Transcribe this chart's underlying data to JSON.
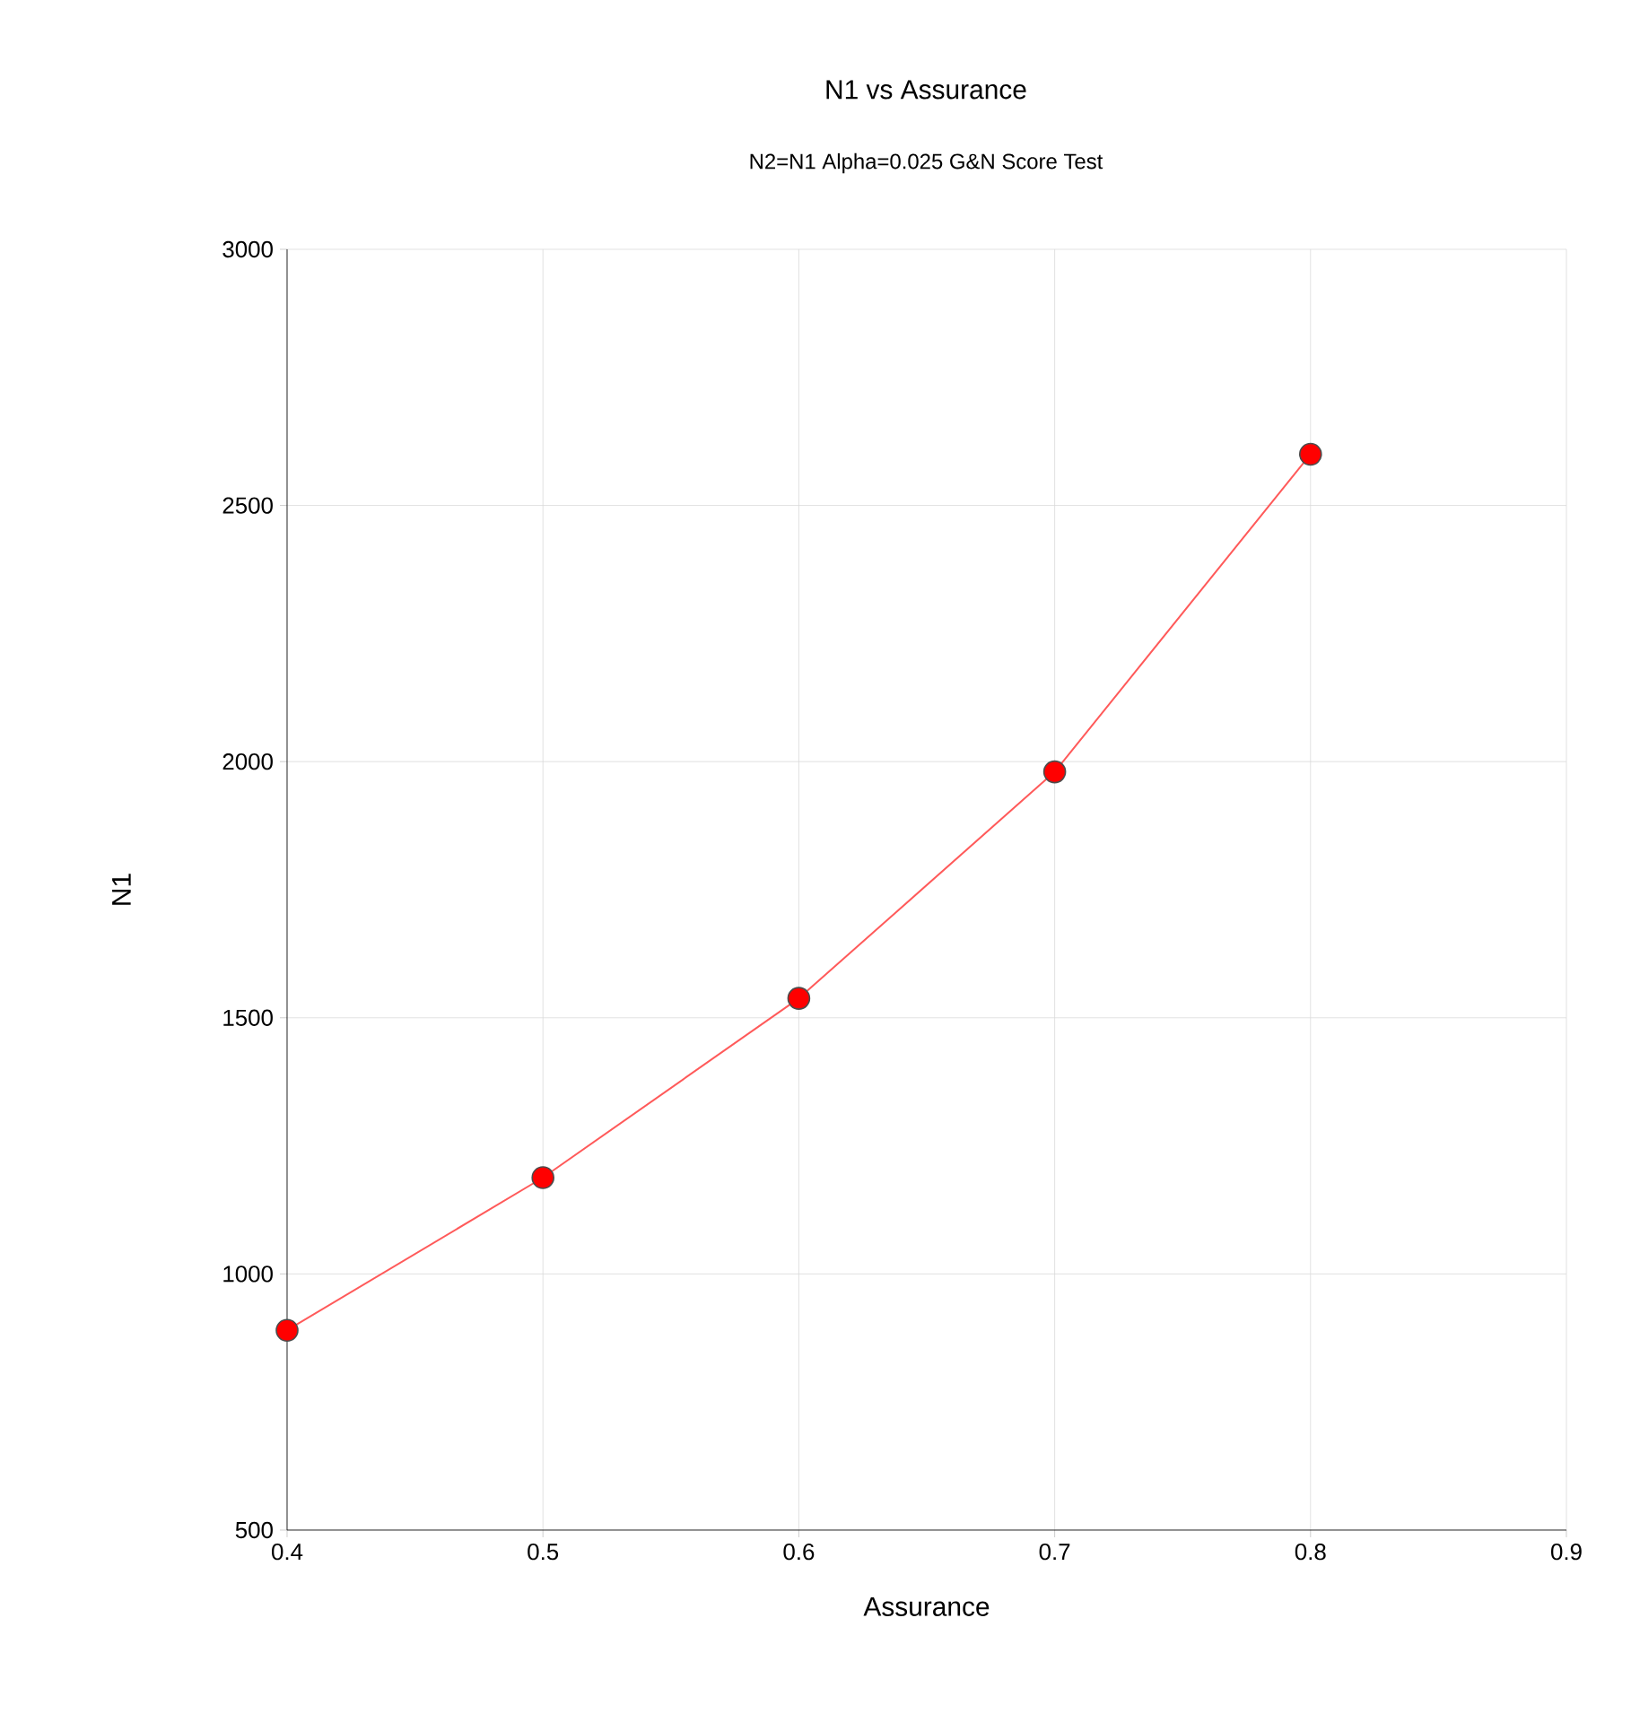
{
  "chart_data": {
    "type": "line",
    "title": "N1 vs Assurance",
    "subtitle": "N2=N1 Alpha=0.025 G&N Score Test",
    "xlabel": "Assurance",
    "ylabel": "N1",
    "x": [
      0.4,
      0.5,
      0.6,
      0.7,
      0.8
    ],
    "series": [
      {
        "color": "#ff5a5a",
        "values": [
          890,
          1188,
          1538,
          1980,
          2600
        ]
      }
    ],
    "marker": "circle",
    "line_style": "solid",
    "grid": true,
    "xlim": [
      0.4,
      0.9
    ],
    "xticks": [
      0.4,
      0.5,
      0.6,
      0.7,
      0.8,
      0.9
    ],
    "ylim": [
      500,
      3000
    ],
    "yticks": [
      500,
      1000,
      1500,
      2000,
      2500,
      3000
    ]
  }
}
